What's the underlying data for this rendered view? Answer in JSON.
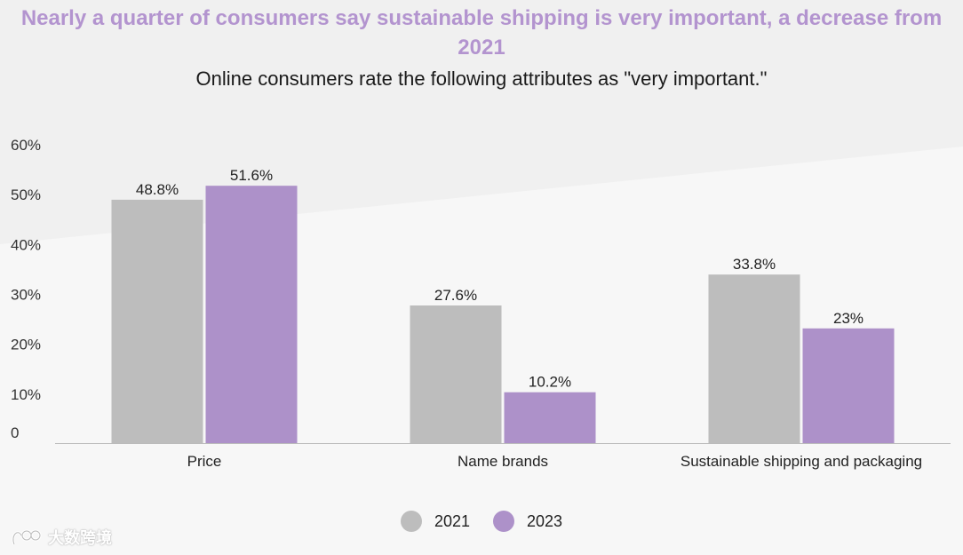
{
  "title": "Nearly a quarter of consumers say sustainable shipping is very important, a decrease from 2021",
  "subtitle": "Online consumers rate the following attributes as \"very important.\"",
  "colors": {
    "title": "#b394cf",
    "series_2021": "#bdbdbd",
    "series_2023": "#ad91c9",
    "axis": "#bbbbbb"
  },
  "watermark": {
    "icon": "loop-logo-icon",
    "text": "大数跨境"
  },
  "chart_data": {
    "type": "bar",
    "title": "Nearly a quarter of consumers say sustainable shipping is very important, a decrease from 2021",
    "subtitle": "Online consumers rate the following attributes as \"very important.\"",
    "categories": [
      "Price",
      "Name brands",
      "Sustainable shipping and packaging"
    ],
    "series": [
      {
        "name": "2021",
        "values": [
          48.8,
          27.6,
          33.8
        ],
        "labels": [
          "48.8%",
          "27.6%",
          "33.8%"
        ]
      },
      {
        "name": "2023",
        "values": [
          51.6,
          10.2,
          23
        ],
        "labels": [
          "51.6%",
          "10.2%",
          "23%"
        ]
      }
    ],
    "yticks": [
      {
        "value": 0,
        "label": "0"
      },
      {
        "value": 10,
        "label": "10%"
      },
      {
        "value": 20,
        "label": "20%"
      },
      {
        "value": 30,
        "label": "30%"
      },
      {
        "value": 40,
        "label": "40%"
      },
      {
        "value": 50,
        "label": "50%"
      },
      {
        "value": 60,
        "label": "60%"
      }
    ],
    "ylim": [
      0,
      60
    ],
    "xlabel": "",
    "ylabel": "",
    "grid": false,
    "legend": "bottom-center"
  }
}
